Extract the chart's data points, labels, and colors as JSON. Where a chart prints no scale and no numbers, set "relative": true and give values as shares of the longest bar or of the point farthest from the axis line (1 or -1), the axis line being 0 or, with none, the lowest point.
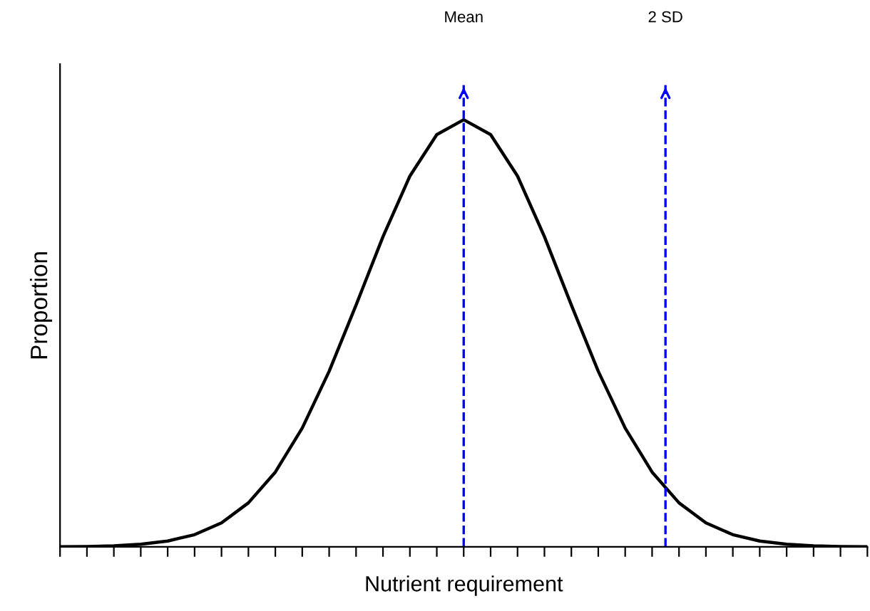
{
  "chart_data": {
    "type": "line",
    "relative": true,
    "xlabel": "Nutrient requirement",
    "ylabel": "Proportion",
    "categories": [
      null,
      null,
      null,
      null,
      null,
      null,
      null,
      null,
      null,
      null,
      null,
      null,
      null,
      null,
      null,
      null,
      null,
      null,
      null,
      null,
      null,
      null,
      null,
      null,
      null,
      null,
      null,
      null,
      null,
      null,
      null
    ],
    "series": [
      {
        "color": "#000000",
        "values": [
          0.0003,
          0.0009,
          0.0025,
          0.006,
          0.0136,
          0.0285,
          0.056,
          0.103,
          0.175,
          0.278,
          0.411,
          0.566,
          0.726,
          0.868,
          0.965,
          1,
          0.965,
          0.868,
          0.726,
          0.566,
          0.411,
          0.278,
          0.175,
          0.103,
          0.056,
          0.0285,
          0.0136,
          0.006,
          0.0025,
          0.0009,
          0.0003
        ]
      }
    ],
    "annotations": [
      "Mean",
      "2 SD"
    ],
    "marker": "none",
    "line_style": "solid",
    "grid": false,
    "legend": false
  }
}
